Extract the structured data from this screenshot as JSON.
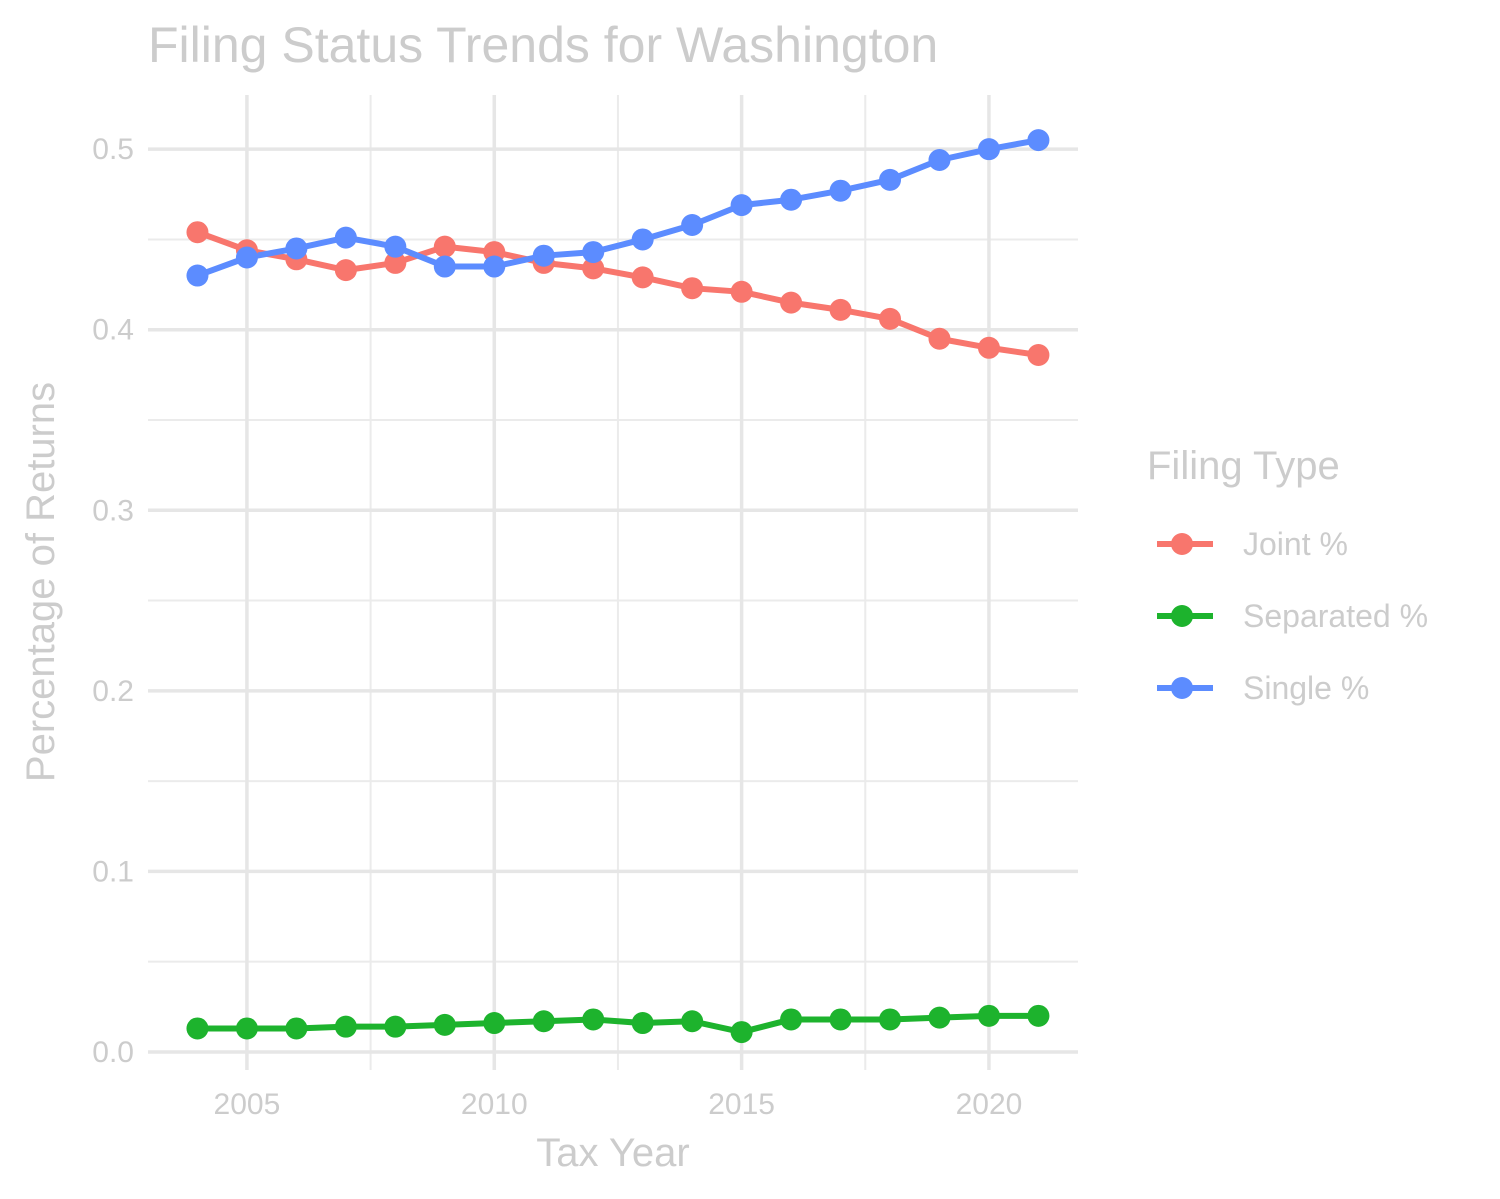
{
  "chart_data": {
    "type": "line",
    "title": "Filing Status Trends for Washington",
    "xlabel": "Tax Year",
    "ylabel": "Percentage of Returns",
    "xlim": [
      2003,
      2021.8
    ],
    "ylim": [
      -0.01,
      0.53
    ],
    "x_ticks": [
      2005,
      2010,
      2015,
      2020
    ],
    "y_ticks": [
      0.0,
      0.1,
      0.2,
      0.3,
      0.4,
      0.5
    ],
    "y_tick_labels": [
      "0.0",
      "0.1",
      "0.2",
      "0.3",
      "0.4",
      "0.5"
    ],
    "x_tick_labels": [
      "2005",
      "2010",
      "2015",
      "2020"
    ],
    "grid": true,
    "legend": {
      "title": "Filing Type",
      "position": "right"
    },
    "x": [
      2004,
      2005,
      2006,
      2007,
      2008,
      2009,
      2010,
      2011,
      2012,
      2013,
      2014,
      2015,
      2016,
      2017,
      2018,
      2019,
      2020,
      2021
    ],
    "series": [
      {
        "name": "Joint %",
        "color": "#F8766D",
        "values": [
          0.454,
          0.444,
          0.439,
          0.433,
          0.437,
          0.446,
          0.443,
          0.437,
          0.434,
          0.429,
          0.423,
          0.421,
          0.415,
          0.411,
          0.406,
          0.395,
          0.39,
          0.386
        ]
      },
      {
        "name": "Separated %",
        "color": "#1DB32D",
        "values": [
          0.013,
          0.013,
          0.013,
          0.014,
          0.014,
          0.015,
          0.016,
          0.017,
          0.018,
          0.016,
          0.017,
          0.011,
          0.018,
          0.018,
          0.018,
          0.019,
          0.02,
          0.02
        ]
      },
      {
        "name": "Single %",
        "color": "#5C8CFF",
        "values": [
          0.43,
          0.44,
          0.445,
          0.451,
          0.446,
          0.435,
          0.435,
          0.441,
          0.443,
          0.45,
          0.458,
          0.469,
          0.472,
          0.477,
          0.483,
          0.494,
          0.5,
          0.505
        ]
      }
    ]
  }
}
